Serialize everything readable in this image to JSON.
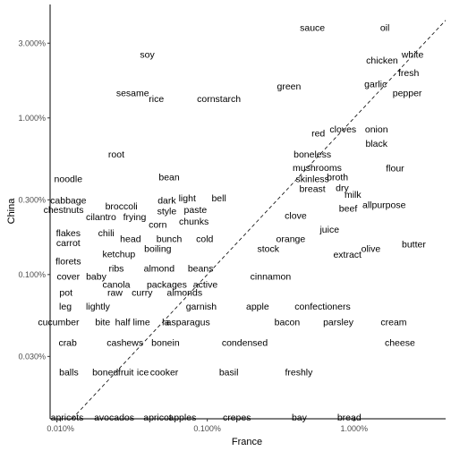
{
  "chart_data": {
    "type": "scatter",
    "title": "",
    "xlabel": "France",
    "ylabel": "China",
    "x_scale": "log",
    "y_scale": "log",
    "xlim": [
      0.0085,
      4.2
    ],
    "ylim": [
      0.012,
      5.3
    ],
    "x_ticks": [
      {
        "value": 0.01,
        "label": "0.010%"
      },
      {
        "value": 0.1,
        "label": "0.100%"
      },
      {
        "value": 1.0,
        "label": "1.000%"
      }
    ],
    "y_ticks": [
      {
        "value": 0.03,
        "label": "0.030%"
      },
      {
        "value": 0.1,
        "label": "0.100%"
      },
      {
        "value": 0.3,
        "label": "0.300%"
      },
      {
        "value": 1.0,
        "label": "1.000%"
      },
      {
        "value": 3.0,
        "label": "3.000%"
      }
    ],
    "reference_line": "y = x (dashed)",
    "grid": false,
    "points": [
      {
        "label": "sauce",
        "x": 0.52,
        "y": 3.8
      },
      {
        "label": "oil",
        "x": 1.62,
        "y": 3.8
      },
      {
        "label": "soy",
        "x": 0.039,
        "y": 2.55
      },
      {
        "label": "white",
        "x": 2.5,
        "y": 2.55
      },
      {
        "label": "chicken",
        "x": 1.55,
        "y": 2.35
      },
      {
        "label": "fresh",
        "x": 2.35,
        "y": 1.95
      },
      {
        "label": "green",
        "x": 0.36,
        "y": 1.6
      },
      {
        "label": "garlic",
        "x": 1.4,
        "y": 1.65
      },
      {
        "label": "pepper",
        "x": 2.3,
        "y": 1.45
      },
      {
        "label": "sesame",
        "x": 0.031,
        "y": 1.45
      },
      {
        "label": "rice",
        "x": 0.045,
        "y": 1.33
      },
      {
        "label": "cornstarch",
        "x": 0.12,
        "y": 1.33
      },
      {
        "label": "red",
        "x": 0.57,
        "y": 0.8
      },
      {
        "label": "cloves",
        "x": 0.84,
        "y": 0.85
      },
      {
        "label": "onion",
        "x": 1.42,
        "y": 0.85
      },
      {
        "label": "black",
        "x": 1.42,
        "y": 0.69
      },
      {
        "label": "root",
        "x": 0.024,
        "y": 0.59
      },
      {
        "label": "boneless",
        "x": 0.52,
        "y": 0.59
      },
      {
        "label": "mushrooms",
        "x": 0.56,
        "y": 0.485
      },
      {
        "label": "flour",
        "x": 1.9,
        "y": 0.48
      },
      {
        "label": "noodle",
        "x": 0.0113,
        "y": 0.41
      },
      {
        "label": "bean",
        "x": 0.055,
        "y": 0.42
      },
      {
        "label": "skinless",
        "x": 0.52,
        "y": 0.41
      },
      {
        "label": "broth",
        "x": 0.77,
        "y": 0.42
      },
      {
        "label": "breast",
        "x": 0.52,
        "y": 0.355
      },
      {
        "label": "dry",
        "x": 0.83,
        "y": 0.36
      },
      {
        "label": "milk",
        "x": 0.98,
        "y": 0.325
      },
      {
        "label": "cabbage",
        "x": 0.0113,
        "y": 0.3
      },
      {
        "label": "light",
        "x": 0.073,
        "y": 0.31
      },
      {
        "label": "bell",
        "x": 0.12,
        "y": 0.31
      },
      {
        "label": "dark",
        "x": 0.053,
        "y": 0.3
      },
      {
        "label": "broccoli",
        "x": 0.026,
        "y": 0.275
      },
      {
        "label": "allpurpose",
        "x": 1.6,
        "y": 0.28
      },
      {
        "label": "chestnuts",
        "x": 0.0105,
        "y": 0.26
      },
      {
        "label": "style",
        "x": 0.053,
        "y": 0.255
      },
      {
        "label": "paste",
        "x": 0.083,
        "y": 0.26
      },
      {
        "label": "beef",
        "x": 0.91,
        "y": 0.265
      },
      {
        "label": "clove",
        "x": 0.4,
        "y": 0.24
      },
      {
        "label": "cilantro",
        "x": 0.0189,
        "y": 0.235
      },
      {
        "label": "frying",
        "x": 0.032,
        "y": 0.235
      },
      {
        "label": "chunks",
        "x": 0.081,
        "y": 0.22
      },
      {
        "label": "corn",
        "x": 0.046,
        "y": 0.21
      },
      {
        "label": "juice",
        "x": 0.68,
        "y": 0.195
      },
      {
        "label": "flakes",
        "x": 0.0113,
        "y": 0.185
      },
      {
        "label": "chili",
        "x": 0.0205,
        "y": 0.185
      },
      {
        "label": "head",
        "x": 0.03,
        "y": 0.17
      },
      {
        "label": "bunch",
        "x": 0.055,
        "y": 0.17
      },
      {
        "label": "cold",
        "x": 0.096,
        "y": 0.17
      },
      {
        "label": "orange",
        "x": 0.37,
        "y": 0.17
      },
      {
        "label": "carrot",
        "x": 0.0113,
        "y": 0.16
      },
      {
        "label": "butter",
        "x": 2.55,
        "y": 0.157
      },
      {
        "label": "boiling",
        "x": 0.046,
        "y": 0.147
      },
      {
        "label": "stock",
        "x": 0.26,
        "y": 0.147
      },
      {
        "label": "olive",
        "x": 1.3,
        "y": 0.147
      },
      {
        "label": "ketchup",
        "x": 0.025,
        "y": 0.136
      },
      {
        "label": "extract",
        "x": 0.9,
        "y": 0.135
      },
      {
        "label": "florets",
        "x": 0.0113,
        "y": 0.122
      },
      {
        "label": "ribs",
        "x": 0.024,
        "y": 0.11
      },
      {
        "label": "almond",
        "x": 0.047,
        "y": 0.11
      },
      {
        "label": "beans",
        "x": 0.09,
        "y": 0.11
      },
      {
        "label": "cover",
        "x": 0.0113,
        "y": 0.098
      },
      {
        "label": "baby",
        "x": 0.0175,
        "y": 0.098
      },
      {
        "label": "cinnamon",
        "x": 0.27,
        "y": 0.098
      },
      {
        "label": "canola",
        "x": 0.024,
        "y": 0.087
      },
      {
        "label": "packages",
        "x": 0.053,
        "y": 0.087
      },
      {
        "label": "active",
        "x": 0.097,
        "y": 0.087
      },
      {
        "label": "pot",
        "x": 0.0109,
        "y": 0.077
      },
      {
        "label": "raw",
        "x": 0.0235,
        "y": 0.077
      },
      {
        "label": "curry",
        "x": 0.036,
        "y": 0.077
      },
      {
        "label": "almonds",
        "x": 0.07,
        "y": 0.077
      },
      {
        "label": "leg",
        "x": 0.0108,
        "y": 0.063
      },
      {
        "label": "lightly",
        "x": 0.018,
        "y": 0.063
      },
      {
        "label": "garnish",
        "x": 0.091,
        "y": 0.063
      },
      {
        "label": "apple",
        "x": 0.22,
        "y": 0.063
      },
      {
        "label": "confectioners",
        "x": 0.61,
        "y": 0.063
      },
      {
        "label": "cucumber",
        "x": 0.0097,
        "y": 0.05
      },
      {
        "label": "bite",
        "x": 0.0194,
        "y": 0.05
      },
      {
        "label": "half lime",
        "x": 0.031,
        "y": 0.05
      },
      {
        "label": "la",
        "x": 0.0521,
        "y": 0.05
      },
      {
        "label": "asparagus",
        "x": 0.074,
        "y": 0.05
      },
      {
        "label": "bacon",
        "x": 0.35,
        "y": 0.05
      },
      {
        "label": "parsley",
        "x": 0.78,
        "y": 0.05
      },
      {
        "label": "cream",
        "x": 1.86,
        "y": 0.05
      },
      {
        "label": "crab",
        "x": 0.0112,
        "y": 0.037
      },
      {
        "label": "cashews",
        "x": 0.0275,
        "y": 0.037
      },
      {
        "label": "bonein",
        "x": 0.0519,
        "y": 0.037
      },
      {
        "label": "condensed",
        "x": 0.18,
        "y": 0.037
      },
      {
        "label": "cheese",
        "x": 2.05,
        "y": 0.037
      },
      {
        "label": "balls",
        "x": 0.0114,
        "y": 0.024
      },
      {
        "label": "boned",
        "x": 0.0202,
        "y": 0.024
      },
      {
        "label": "fruit",
        "x": 0.0279,
        "y": 0.024
      },
      {
        "label": "ice",
        "x": 0.0364,
        "y": 0.024
      },
      {
        "label": "cooker",
        "x": 0.0509,
        "y": 0.024
      },
      {
        "label": "basil",
        "x": 0.14,
        "y": 0.024
      },
      {
        "label": "freshly",
        "x": 0.42,
        "y": 0.024
      },
      {
        "label": "apricots",
        "x": 0.0111,
        "y": 0.0123
      },
      {
        "label": "avocados",
        "x": 0.0232,
        "y": 0.0123
      },
      {
        "label": "apricot",
        "x": 0.0458,
        "y": 0.0123
      },
      {
        "label": "apples",
        "x": 0.0677,
        "y": 0.0123
      },
      {
        "label": "crepes",
        "x": 0.159,
        "y": 0.0123
      },
      {
        "label": "bay",
        "x": 0.423,
        "y": 0.0123
      },
      {
        "label": "bread",
        "x": 0.926,
        "y": 0.0123
      }
    ]
  }
}
